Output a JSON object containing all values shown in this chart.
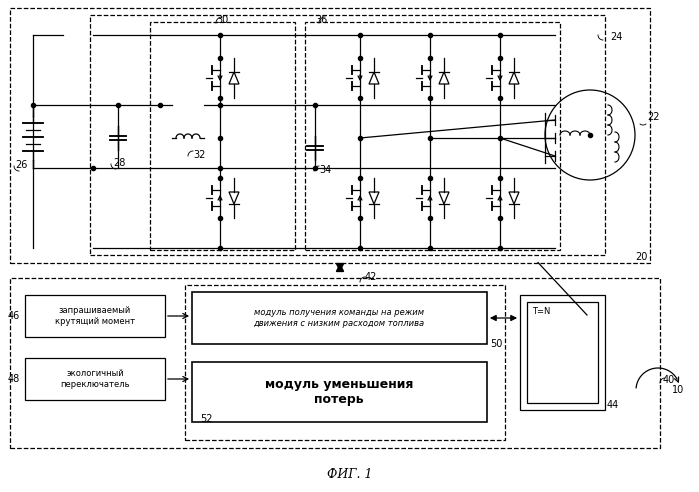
{
  "title": "ФИГ. 1",
  "bg_color": "#ffffff",
  "label_20": "20",
  "label_22": "22",
  "label_24": "24",
  "label_26": "26",
  "label_28": "28",
  "label_30": "30",
  "label_32": "32",
  "label_34": "34",
  "label_36": "36",
  "label_40": "40",
  "label_42": "42",
  "label_44": "44",
  "label_46": "46",
  "label_48": "48",
  "label_50": "50",
  "label_52": "52",
  "label_10": "10",
  "text_46": "запрашиваемый\nкрутящий момент",
  "text_48": "экологичный\nпереключатель",
  "text_module_get": "модуль получения команды на режим\nдвижения с низким расходом топлива",
  "text_module_reduce": "модуль уменьшения\nпотерь",
  "text_tn": "T=N"
}
